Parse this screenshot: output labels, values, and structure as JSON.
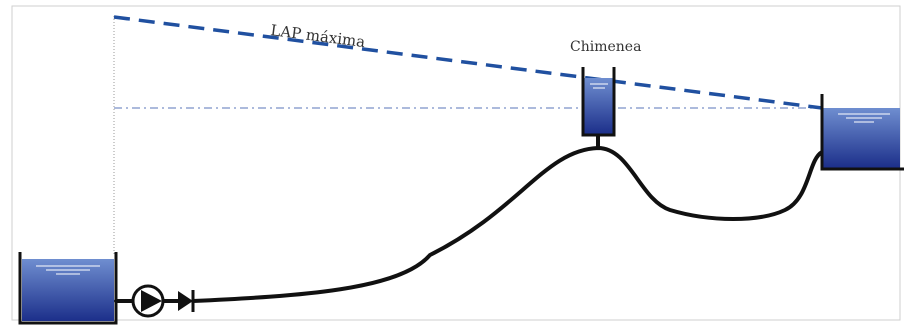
{
  "labels": {
    "lap_max": "LAP máxima",
    "chimney": "Chimenea"
  },
  "components": {
    "left_tank": "reservoir",
    "pump": "pump-icon",
    "check_valve": "check-valve-icon",
    "pipeline": "pipe",
    "chimney": "surge-chimney",
    "right_tank": "reservoir"
  },
  "colors": {
    "water_top": "#6f8ed0",
    "water_bottom": "#1c2f8a",
    "lap_line": "#2050a0",
    "static_line": "#7a90c8",
    "pipe": "#111111",
    "frame": "#cfcfcf",
    "guide": "#9a9a9a"
  }
}
